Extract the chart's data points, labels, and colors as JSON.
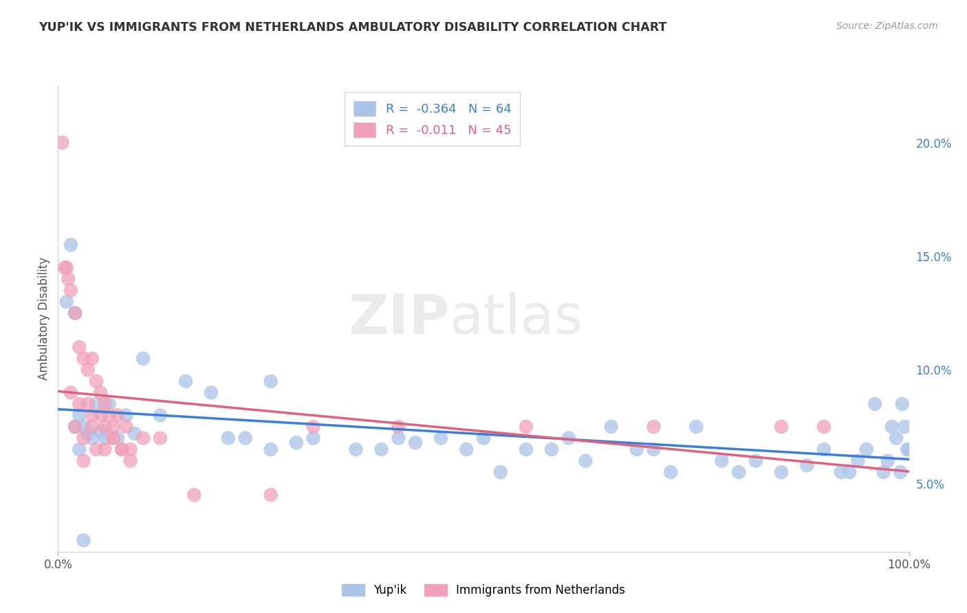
{
  "title": "YUP'IK VS IMMIGRANTS FROM NETHERLANDS AMBULATORY DISABILITY CORRELATION CHART",
  "source": "Source: ZipAtlas.com",
  "ylabel": "Ambulatory Disability",
  "xlim": [
    0.0,
    100.0
  ],
  "ylim": [
    2.0,
    22.5
  ],
  "yticks_right": [
    5.0,
    10.0,
    15.0,
    20.0
  ],
  "ytick_labels_right": [
    "5.0%",
    "10.0%",
    "15.0%",
    "20.0%"
  ],
  "watermark_zip": "ZIP",
  "watermark_atlas": "atlas",
  "legend": [
    {
      "label": "R =  -0.364   N = 64",
      "color": "#aac4e8"
    },
    {
      "label": "R =  -0.011   N = 45",
      "color": "#f0a0b8"
    }
  ],
  "series1_color": "#aac4e8",
  "series2_color": "#f0a0b8",
  "series1_line_color": "#3a7fd5",
  "series2_line_color": "#e06080",
  "background_color": "#ffffff",
  "plot_bg_color": "#ffffff",
  "grid_color": "#d8d8d8",
  "series1_x": [
    1.0,
    1.5,
    2.0,
    2.5,
    3.0,
    3.5,
    4.0,
    4.5,
    5.0,
    5.5,
    6.0,
    7.0,
    8.0,
    9.0,
    10.0,
    12.0,
    15.0,
    18.0,
    20.0,
    22.0,
    25.0,
    28.0,
    30.0,
    35.0,
    38.0,
    40.0,
    42.0,
    45.0,
    48.0,
    50.0,
    52.0,
    55.0,
    58.0,
    60.0,
    62.0,
    65.0,
    68.0,
    70.0,
    72.0,
    75.0,
    78.0,
    80.0,
    82.0,
    85.0,
    88.0,
    90.0,
    92.0,
    93.0,
    94.0,
    95.0,
    96.0,
    97.0,
    97.5,
    98.0,
    98.5,
    99.0,
    99.2,
    99.5,
    99.8,
    100.0,
    25.0,
    3.0,
    2.5,
    2.0
  ],
  "series1_y": [
    13.0,
    15.5,
    12.5,
    8.0,
    7.5,
    7.2,
    7.0,
    8.5,
    7.3,
    7.0,
    8.5,
    7.0,
    8.0,
    7.2,
    10.5,
    8.0,
    9.5,
    9.0,
    7.0,
    7.0,
    6.5,
    6.8,
    7.0,
    6.5,
    6.5,
    7.0,
    6.8,
    7.0,
    6.5,
    7.0,
    5.5,
    6.5,
    6.5,
    7.0,
    6.0,
    7.5,
    6.5,
    6.5,
    5.5,
    7.5,
    6.0,
    5.5,
    6.0,
    5.5,
    5.8,
    6.5,
    5.5,
    5.5,
    6.0,
    6.5,
    8.5,
    5.5,
    6.0,
    7.5,
    7.0,
    5.5,
    8.5,
    7.5,
    6.5,
    6.5,
    9.5,
    2.5,
    6.5,
    7.5
  ],
  "series2_x": [
    0.5,
    0.8,
    1.0,
    1.2,
    1.5,
    2.0,
    2.5,
    3.0,
    3.5,
    4.0,
    4.5,
    5.0,
    5.5,
    6.0,
    7.0,
    8.0,
    1.5,
    2.5,
    3.5,
    4.0,
    5.0,
    6.5,
    2.0,
    3.0,
    4.0,
    5.5,
    6.5,
    7.5,
    8.5,
    10.0,
    12.0,
    16.0,
    25.0,
    30.0,
    40.0,
    55.0,
    70.0,
    85.0,
    90.0,
    3.0,
    4.5,
    5.5,
    6.5,
    7.5,
    8.5
  ],
  "series2_y": [
    20.0,
    14.5,
    14.5,
    14.0,
    13.5,
    12.5,
    11.0,
    10.5,
    10.0,
    10.5,
    9.5,
    9.0,
    8.5,
    8.0,
    8.0,
    7.5,
    9.0,
    8.5,
    8.5,
    8.0,
    8.0,
    7.5,
    7.5,
    7.0,
    7.5,
    7.5,
    7.0,
    6.5,
    6.5,
    7.0,
    7.0,
    4.5,
    4.5,
    7.5,
    7.5,
    7.5,
    7.5,
    7.5,
    7.5,
    6.0,
    6.5,
    6.5,
    7.0,
    6.5,
    6.0
  ]
}
